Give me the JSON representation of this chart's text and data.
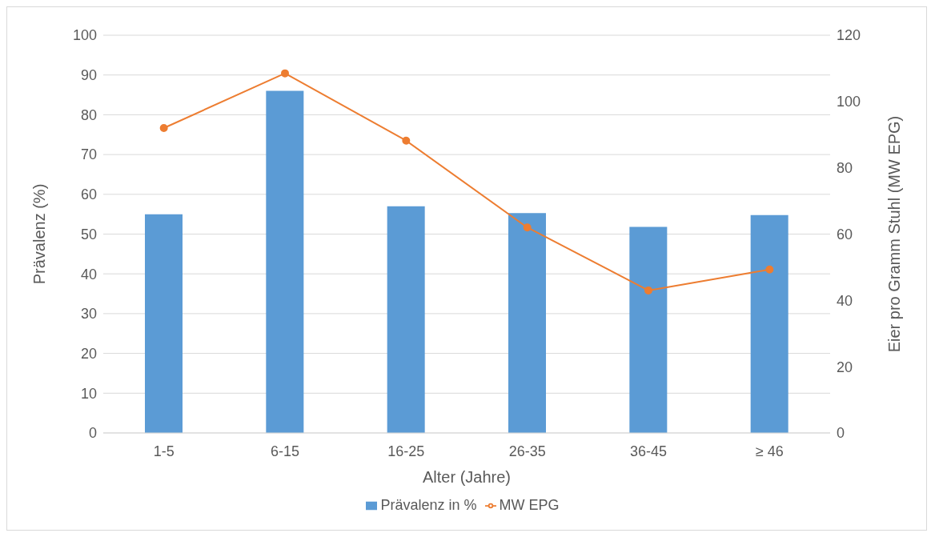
{
  "chart_data": {
    "type": "bar",
    "xlabel": "Alter (Jahre)",
    "ylabel": "Prävalenz (%)",
    "y2label": "Eier pro Gramm Stuhl (MW EPG)",
    "categories": [
      "1-5",
      "6-15",
      "16-25",
      "26-35",
      "36-45",
      "≥ 46"
    ],
    "series": [
      {
        "name": "Prävalenz in %",
        "color": "#5b9bd5",
        "values": [
          55,
          86,
          57,
          55.3,
          51.8,
          54.8
        ]
      },
      {
        "name": "MW EPG",
        "type": "line",
        "axis": "y2",
        "color": "#ed7d31",
        "values": [
          92,
          108.5,
          88.2,
          62,
          43,
          49.3
        ]
      }
    ],
    "ylim": [
      0,
      100
    ],
    "yticks": [
      0,
      10,
      20,
      30,
      40,
      50,
      60,
      70,
      80,
      90,
      100
    ],
    "y2lim": [
      0,
      120
    ],
    "y2ticks": [
      0,
      20,
      40,
      60,
      80,
      100,
      120
    ],
    "grid": "y",
    "legend": "bottom",
    "marker": "circle",
    "line_style": "solid"
  }
}
